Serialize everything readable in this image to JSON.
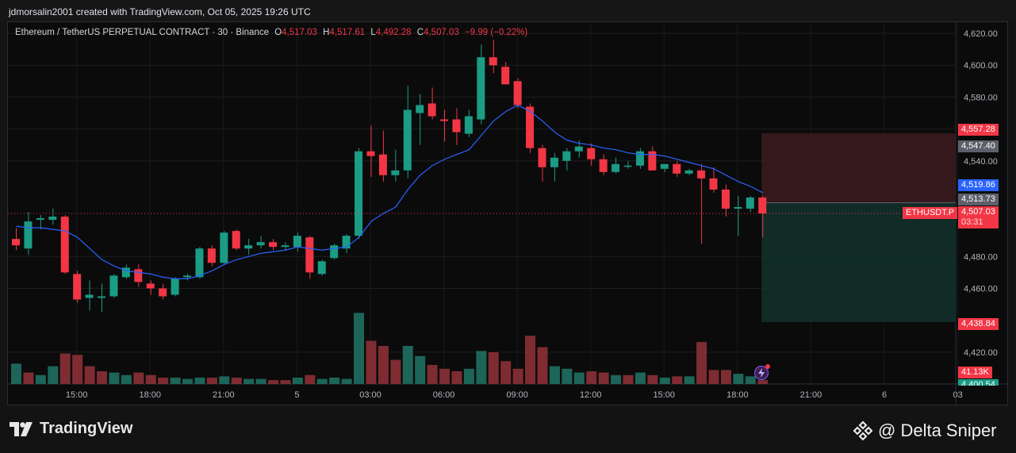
{
  "header": {
    "credit": "jdmorsalin2001 created with TradingView.com, Oct 05, 2025 19:26 UTC"
  },
  "legend": {
    "symbol": "Ethereum / TetherUS PERPETUAL CONTRACT · 30 · Binance",
    "o_label": "O",
    "o": "4,517.03",
    "h_label": "H",
    "h": "4,517.61",
    "l_label": "L",
    "l": "4,492.28",
    "c_label": "C",
    "c": "4,507.03",
    "change": "−9.99 (−0.22%)"
  },
  "price_tags": {
    "target": "4,557.28",
    "gray_high": "4,547.40",
    "ma": "4,519.86",
    "entry": "4,513.73",
    "symbol": "ETHUSDT.P",
    "last": "4,507.03",
    "countdown": "03:31",
    "stop": "4,438.84",
    "volume": "41.13K",
    "cut": "4,400.54"
  },
  "footer": {
    "brand": "TradingView",
    "watermark": "@ Delta Sniper"
  },
  "colors": {
    "up": "#1b9c85",
    "down": "#f23645",
    "ma": "#2962ff",
    "target_zone": "#3a1a1d",
    "stop_zone": "#12302a"
  },
  "icons": {
    "brand": "tradingview-logo-icon",
    "watermark": "diamond-logo-icon",
    "alert": "lightning-icon"
  },
  "chart_data": {
    "type": "candlestick",
    "interval": "30",
    "yticks": [
      "4,620.00",
      "4,600.00",
      "4,580.00",
      "4,560.00",
      "4,540.00",
      "4,480.00",
      "4,460.00",
      "4,420.00"
    ],
    "ylim": [
      4400,
      4624
    ],
    "xticks": [
      "15:00",
      "18:00",
      "21:00",
      "5",
      "03:00",
      "06:00",
      "09:00",
      "12:00",
      "15:00",
      "18:00",
      "21:00",
      "6",
      "03"
    ],
    "candles": [
      {
        "o": 4491,
        "h": 4498,
        "l": 4484,
        "c": 4487
      },
      {
        "o": 4485,
        "h": 4508,
        "l": 4481,
        "c": 4502
      },
      {
        "o": 4503,
        "h": 4506,
        "l": 4497,
        "c": 4504
      },
      {
        "o": 4503,
        "h": 4510,
        "l": 4500,
        "c": 4505
      },
      {
        "o": 4505,
        "h": 4506,
        "l": 4469,
        "c": 4470
      },
      {
        "o": 4469,
        "h": 4471,
        "l": 4451,
        "c": 4453
      },
      {
        "o": 4454,
        "h": 4465,
        "l": 4446,
        "c": 4456
      },
      {
        "o": 4454,
        "h": 4463,
        "l": 4445,
        "c": 4455
      },
      {
        "o": 4455,
        "h": 4469,
        "l": 4454,
        "c": 4468
      },
      {
        "o": 4467,
        "h": 4475,
        "l": 4466,
        "c": 4473
      },
      {
        "o": 4472,
        "h": 4475,
        "l": 4461,
        "c": 4464
      },
      {
        "o": 4463,
        "h": 4465,
        "l": 4456,
        "c": 4460
      },
      {
        "o": 4460,
        "h": 4463,
        "l": 4453,
        "c": 4455
      },
      {
        "o": 4456,
        "h": 4467,
        "l": 4455,
        "c": 4466
      },
      {
        "o": 4467,
        "h": 4469,
        "l": 4465,
        "c": 4468
      },
      {
        "o": 4467,
        "h": 4486,
        "l": 4466,
        "c": 4485
      },
      {
        "o": 4485,
        "h": 4487,
        "l": 4474,
        "c": 4476
      },
      {
        "o": 4476,
        "h": 4496,
        "l": 4475,
        "c": 4495
      },
      {
        "o": 4496,
        "h": 4497,
        "l": 4484,
        "c": 4485
      },
      {
        "o": 4485,
        "h": 4491,
        "l": 4481,
        "c": 4487
      },
      {
        "o": 4487,
        "h": 4493,
        "l": 4485,
        "c": 4489
      },
      {
        "o": 4489,
        "h": 4491,
        "l": 4484,
        "c": 4486
      },
      {
        "o": 4486,
        "h": 4489,
        "l": 4484,
        "c": 4487
      },
      {
        "o": 4486,
        "h": 4495,
        "l": 4483,
        "c": 4493
      },
      {
        "o": 4492,
        "h": 4493,
        "l": 4466,
        "c": 4470
      },
      {
        "o": 4469,
        "h": 4478,
        "l": 4468,
        "c": 4477
      },
      {
        "o": 4479,
        "h": 4488,
        "l": 4478,
        "c": 4487
      },
      {
        "o": 4485,
        "h": 4494,
        "l": 4482,
        "c": 4493
      },
      {
        "o": 4493,
        "h": 4548,
        "l": 4491,
        "c": 4546
      },
      {
        "o": 4546,
        "h": 4562,
        "l": 4530,
        "c": 4543
      },
      {
        "o": 4544,
        "h": 4559,
        "l": 4527,
        "c": 4531
      },
      {
        "o": 4531,
        "h": 4547,
        "l": 4527,
        "c": 4534
      },
      {
        "o": 4534,
        "h": 4587,
        "l": 4529,
        "c": 4572
      },
      {
        "o": 4570,
        "h": 4582,
        "l": 4550,
        "c": 4575
      },
      {
        "o": 4576,
        "h": 4586,
        "l": 4566,
        "c": 4568
      },
      {
        "o": 4566,
        "h": 4572,
        "l": 4552,
        "c": 4565
      },
      {
        "o": 4566,
        "h": 4573,
        "l": 4550,
        "c": 4558
      },
      {
        "o": 4557,
        "h": 4572,
        "l": 4555,
        "c": 4568
      },
      {
        "o": 4566,
        "h": 4613,
        "l": 4563,
        "c": 4605
      },
      {
        "o": 4605,
        "h": 4616,
        "l": 4595,
        "c": 4600
      },
      {
        "o": 4599,
        "h": 4602,
        "l": 4588,
        "c": 4588
      },
      {
        "o": 4590,
        "h": 4592,
        "l": 4573,
        "c": 4575
      },
      {
        "o": 4574,
        "h": 4576,
        "l": 4545,
        "c": 4548
      },
      {
        "o": 4548,
        "h": 4550,
        "l": 4527,
        "c": 4536
      },
      {
        "o": 4536,
        "h": 4545,
        "l": 4527,
        "c": 4542
      },
      {
        "o": 4540,
        "h": 4548,
        "l": 4534,
        "c": 4546
      },
      {
        "o": 4546,
        "h": 4553,
        "l": 4542,
        "c": 4549
      },
      {
        "o": 4548,
        "h": 4551,
        "l": 4537,
        "c": 4541
      },
      {
        "o": 4541,
        "h": 4544,
        "l": 4531,
        "c": 4533
      },
      {
        "o": 4533,
        "h": 4542,
        "l": 4532,
        "c": 4538
      },
      {
        "o": 4537,
        "h": 4540,
        "l": 4535,
        "c": 4537
      },
      {
        "o": 4537,
        "h": 4548,
        "l": 4535,
        "c": 4546
      },
      {
        "o": 4546,
        "h": 4549,
        "l": 4534,
        "c": 4534
      },
      {
        "o": 4535,
        "h": 4538,
        "l": 4533,
        "c": 4538
      },
      {
        "o": 4538,
        "h": 4540,
        "l": 4530,
        "c": 4532
      },
      {
        "o": 4532,
        "h": 4535,
        "l": 4531,
        "c": 4534
      },
      {
        "o": 4534,
        "h": 4538,
        "l": 4488,
        "c": 4529
      },
      {
        "o": 4529,
        "h": 4536,
        "l": 4520,
        "c": 4522
      },
      {
        "o": 4522,
        "h": 4525,
        "l": 4505,
        "c": 4510
      },
      {
        "o": 4510,
        "h": 4518,
        "l": 4493,
        "c": 4511
      },
      {
        "o": 4510,
        "h": 4518,
        "l": 4508,
        "c": 4517
      },
      {
        "o": 4517,
        "h": 4518,
        "l": 4492,
        "c": 4507
      }
    ],
    "moving_average": [
      4499,
      4498,
      4498,
      4497,
      4496,
      4492,
      4485,
      4478,
      4474,
      4471,
      4470,
      4469,
      4467,
      4466,
      4466,
      4468,
      4471,
      4475,
      4478,
      4480,
      4482,
      4483,
      4484,
      4486,
      4485,
      4484,
      4485,
      4486,
      4492,
      4502,
      4507,
      4511,
      4522,
      4531,
      4537,
      4541,
      4544,
      4547,
      4556,
      4565,
      4571,
      4575,
      4571,
      4565,
      4558,
      4553,
      4551,
      4550,
      4548,
      4547,
      4545,
      4544,
      4544,
      4543,
      4541,
      4539,
      4537,
      4535,
      4531,
      4527,
      4524,
      4520
    ],
    "volume": [
      {
        "v": 16,
        "dir": "up"
      },
      {
        "v": 9,
        "dir": "down"
      },
      {
        "v": 7,
        "dir": "up"
      },
      {
        "v": 14,
        "dir": "up"
      },
      {
        "v": 24,
        "dir": "down"
      },
      {
        "v": 23,
        "dir": "down"
      },
      {
        "v": 14,
        "dir": "down"
      },
      {
        "v": 10,
        "dir": "down"
      },
      {
        "v": 9,
        "dir": "up"
      },
      {
        "v": 7,
        "dir": "up"
      },
      {
        "v": 9,
        "dir": "down"
      },
      {
        "v": 7,
        "dir": "down"
      },
      {
        "v": 5,
        "dir": "down"
      },
      {
        "v": 5,
        "dir": "up"
      },
      {
        "v": 4,
        "dir": "up"
      },
      {
        "v": 5,
        "dir": "up"
      },
      {
        "v": 5,
        "dir": "down"
      },
      {
        "v": 6,
        "dir": "up"
      },
      {
        "v": 5,
        "dir": "down"
      },
      {
        "v": 4,
        "dir": "up"
      },
      {
        "v": 4,
        "dir": "up"
      },
      {
        "v": 3,
        "dir": "down"
      },
      {
        "v": 3,
        "dir": "down"
      },
      {
        "v": 5,
        "dir": "up"
      },
      {
        "v": 7,
        "dir": "down"
      },
      {
        "v": 4,
        "dir": "up"
      },
      {
        "v": 5,
        "dir": "up"
      },
      {
        "v": 4,
        "dir": "up"
      },
      {
        "v": 56,
        "dir": "up"
      },
      {
        "v": 34,
        "dir": "down"
      },
      {
        "v": 30,
        "dir": "down"
      },
      {
        "v": 19,
        "dir": "down"
      },
      {
        "v": 30,
        "dir": "up"
      },
      {
        "v": 22,
        "dir": "up"
      },
      {
        "v": 15,
        "dir": "down"
      },
      {
        "v": 12,
        "dir": "down"
      },
      {
        "v": 10,
        "dir": "down"
      },
      {
        "v": 12,
        "dir": "up"
      },
      {
        "v": 26,
        "dir": "up"
      },
      {
        "v": 25,
        "dir": "down"
      },
      {
        "v": 18,
        "dir": "down"
      },
      {
        "v": 12,
        "dir": "down"
      },
      {
        "v": 38,
        "dir": "down"
      },
      {
        "v": 29,
        "dir": "down"
      },
      {
        "v": 14,
        "dir": "up"
      },
      {
        "v": 12,
        "dir": "up"
      },
      {
        "v": 9,
        "dir": "up"
      },
      {
        "v": 10,
        "dir": "down"
      },
      {
        "v": 9,
        "dir": "down"
      },
      {
        "v": 7,
        "dir": "up"
      },
      {
        "v": 7,
        "dir": "down"
      },
      {
        "v": 9,
        "dir": "up"
      },
      {
        "v": 7,
        "dir": "down"
      },
      {
        "v": 5,
        "dir": "up"
      },
      {
        "v": 6,
        "dir": "down"
      },
      {
        "v": 6,
        "dir": "up"
      },
      {
        "v": 33,
        "dir": "down"
      },
      {
        "v": 11,
        "dir": "down"
      },
      {
        "v": 11,
        "dir": "down"
      },
      {
        "v": 8,
        "dir": "up"
      },
      {
        "v": 6,
        "dir": "up"
      },
      {
        "v": 3,
        "dir": "down"
      }
    ],
    "position": {
      "target": 4557.28,
      "entry": 4513.73,
      "stop": 4438.84
    },
    "grid": true
  }
}
